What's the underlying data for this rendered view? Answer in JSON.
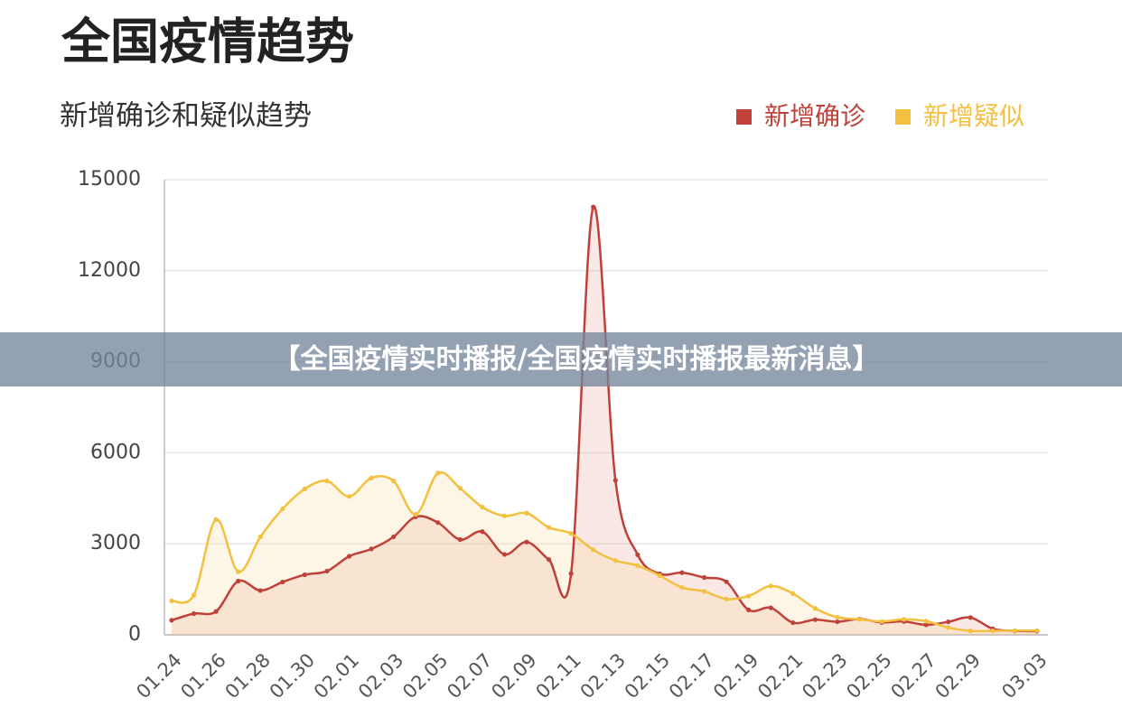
{
  "banner": "【全国疫情实时播报/全国疫情实时播报最新消息】",
  "chart_data": {
    "type": "line",
    "title": "全国疫情趋势",
    "subtitle": "新增确诊和疑似趋势",
    "categories": [
      "01.24",
      null,
      "01.26",
      null,
      "01.28",
      null,
      "01.30",
      null,
      "02.01",
      null,
      "02.03",
      null,
      "02.05",
      null,
      "02.07",
      null,
      "02.09",
      null,
      "02.11",
      null,
      "02.13",
      null,
      "02.15",
      null,
      "02.17",
      null,
      "02.19",
      null,
      "02.21",
      null,
      "02.23",
      null,
      "02.25",
      null,
      "02.27",
      null,
      "02.29",
      null,
      null,
      "03.03"
    ],
    "series": [
      {
        "name": "新增确诊",
        "color": "#bf4139",
        "fill": "rgba(232,150,140,0.22)",
        "values": [
          480,
          700,
          770,
          1770,
          1460,
          1740,
          1980,
          2100,
          2590,
          2830,
          3230,
          3890,
          3700,
          3140,
          3400,
          2650,
          3060,
          2480,
          2020,
          14100,
          5090,
          2640,
          2010,
          2050,
          1890,
          1750,
          820,
          890,
          400,
          500,
          430,
          520,
          410,
          440,
          330,
          430,
          570,
          200,
          130,
          120
        ]
      },
      {
        "name": "新增疑似",
        "color": "#f3c03f",
        "fill": "rgba(247,214,150,0.25)",
        "values": [
          1120,
          1310,
          3800,
          2080,
          3230,
          4150,
          4810,
          5070,
          4560,
          5170,
          5070,
          3970,
          5330,
          4830,
          4210,
          3920,
          4010,
          3540,
          3340,
          2800,
          2450,
          2280,
          1950,
          1560,
          1430,
          1180,
          1280,
          1610,
          1360,
          870,
          580,
          510,
          440,
          510,
          450,
          240,
          130,
          130,
          140,
          140
        ]
      }
    ],
    "ylim": [
      0,
      15000
    ],
    "yticks": [
      0,
      3000,
      6000,
      9000,
      12000,
      15000
    ],
    "grid": true,
    "smooth": true,
    "legend": "top-right"
  }
}
